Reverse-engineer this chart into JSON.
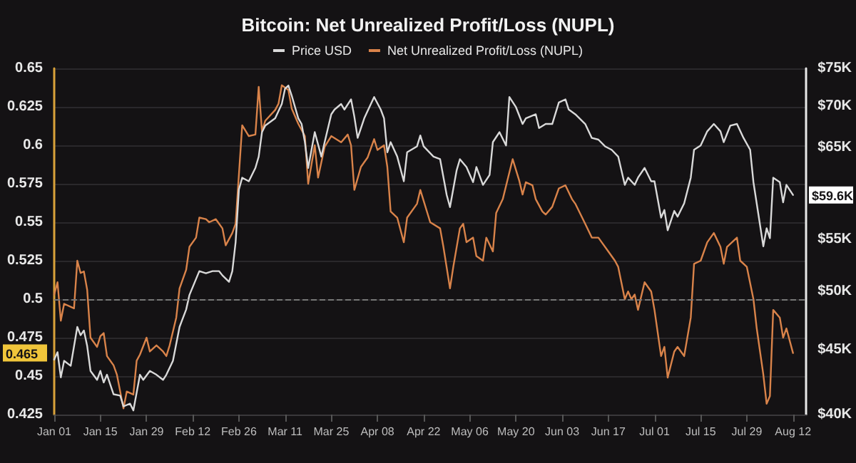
{
  "chart_data": {
    "type": "line",
    "title": "Bitcoin: Net Unrealized Profit/Loss (NUPL)",
    "series": [
      {
        "name": "Price USD",
        "color": "#d9d9d9",
        "axis": "y2",
        "x": [
          "--01-01",
          "--01-02",
          "--01-03",
          "--01-04",
          "--01-06",
          "--01-08",
          "--01-09",
          "--01-10",
          "--01-11",
          "--01-12",
          "--01-14",
          "--01-15",
          "--01-16",
          "--01-17",
          "--01-19",
          "--01-21",
          "--01-22",
          "--01-24",
          "--01-25",
          "--01-27",
          "--01-28",
          "--01-30",
          "--02-01",
          "--02-03",
          "--02-04",
          "--02-06",
          "--02-08",
          "--02-10",
          "--02-11",
          "--02-14",
          "--02-16",
          "--02-18",
          "--02-20",
          "--02-21",
          "--02-23",
          "--02-24",
          "--02-25",
          "--02-26",
          "--02-27",
          "--02-29",
          "--03-02",
          "--03-03",
          "--03-04",
          "--03-05",
          "--03-08",
          "--03-10",
          "--03-11",
          "--03-12",
          "--03-13",
          "--03-15",
          "--03-16",
          "--03-17",
          "--03-18",
          "--03-20",
          "--03-22",
          "--03-23",
          "--03-25",
          "--03-26",
          "--03-28",
          "--03-29",
          "--03-31",
          "--04-01",
          "--04-02",
          "--04-04",
          "--04-05",
          "--04-07",
          "--04-09",
          "--04-10",
          "--04-11",
          "--04-12",
          "--04-14",
          "--04-16",
          "--04-17",
          "--04-20",
          "--04-21",
          "--04-22",
          "--04-25",
          "--04-27",
          "--04-29",
          "--04-30",
          "--05-02",
          "--05-03",
          "--05-05",
          "--05-07",
          "--05-08",
          "--05-10",
          "--05-12",
          "--05-13",
          "--05-15",
          "--05-17",
          "--05-18",
          "--05-20",
          "--05-22",
          "--05-23",
          "--05-26",
          "--05-27",
          "--05-29",
          "--05-31",
          "--06-02",
          "--06-04",
          "--06-05",
          "--06-07",
          "--06-10",
          "--06-12",
          "--06-14",
          "--06-16",
          "--06-18",
          "--06-20",
          "--06-22",
          "--06-23",
          "--06-25",
          "--06-26",
          "--06-28",
          "--06-30",
          "--07-01",
          "--07-03",
          "--07-04",
          "--07-05",
          "--07-07",
          "--07-08",
          "--07-10",
          "--07-12",
          "--07-13",
          "--07-15",
          "--07-17",
          "--07-19",
          "--07-21",
          "--07-22",
          "--07-24",
          "--07-26",
          "--07-28",
          "--07-30",
          "--07-31",
          "--08-03",
          "--08-04",
          "--08-05",
          "--08-06",
          "--08-08",
          "--08-09",
          "--08-10",
          "--08-12"
        ],
        "values": [
          44200,
          44800,
          42800,
          44100,
          43700,
          46900,
          46200,
          46600,
          45300,
          43300,
          42600,
          43300,
          42400,
          43000,
          41500,
          41400,
          40600,
          40800,
          40300,
          43000,
          42600,
          43300,
          43000,
          42600,
          43000,
          44100,
          46900,
          48400,
          49700,
          51900,
          51700,
          51900,
          51900,
          51500,
          50900,
          51900,
          54700,
          60200,
          61500,
          61100,
          62600,
          63900,
          66800,
          67600,
          68500,
          70300,
          72300,
          72700,
          71400,
          68500,
          67800,
          65600,
          62600,
          66800,
          63900,
          65600,
          69000,
          69600,
          70300,
          69600,
          70900,
          68700,
          66100,
          68500,
          69400,
          71200,
          69600,
          68500,
          64400,
          65600,
          63900,
          61100,
          64400,
          65100,
          66400,
          65100,
          63900,
          63600,
          59600,
          58300,
          62300,
          63600,
          62700,
          61000,
          62700,
          60700,
          61800,
          65600,
          66800,
          65200,
          71200,
          69900,
          67800,
          68500,
          69000,
          67300,
          67800,
          67800,
          70500,
          70900,
          69600,
          69000,
          67800,
          66100,
          65900,
          65100,
          64700,
          63900,
          60700,
          61500,
          60700,
          61500,
          62600,
          61100,
          61100,
          57200,
          58000,
          55900,
          57900,
          57300,
          58700,
          61500,
          64700,
          65200,
          66900,
          67800,
          66900,
          65600,
          67600,
          67800,
          66100,
          64700,
          61000,
          54300,
          56100,
          55100,
          61500,
          61000,
          58800,
          60700,
          59600
        ]
      },
      {
        "name": "Net Unrealized Profit/Loss (NUPL)",
        "color": "#d9834a",
        "x": [
          "--01-01",
          "--01-02",
          "--01-03",
          "--01-04",
          "--01-07",
          "--01-08",
          "--01-09",
          "--01-10",
          "--01-11",
          "--01-12",
          "--01-14",
          "--01-15",
          "--01-16",
          "--01-17",
          "--01-19",
          "--01-20",
          "--01-22",
          "--01-23",
          "--01-25",
          "--01-26",
          "--01-27",
          "--01-29",
          "--01-30",
          "--02-01",
          "--02-03",
          "--02-04",
          "--02-05",
          "--02-07",
          "--02-08",
          "--02-10",
          "--02-11",
          "--02-13",
          "--02-14",
          "--02-16",
          "--02-17",
          "--02-19",
          "--02-21",
          "--02-22",
          "--02-24",
          "--02-25",
          "--02-26",
          "--02-27",
          "--02-29",
          "--03-02",
          "--03-03",
          "--03-04",
          "--03-05",
          "--03-08",
          "--03-09",
          "--03-10",
          "--03-12",
          "--03-13",
          "--03-15",
          "--03-17",
          "--03-18",
          "--03-20",
          "--03-21",
          "--03-23",
          "--03-25",
          "--03-28",
          "--03-30",
          "--03-31",
          "--04-01",
          "--04-03",
          "--04-05",
          "--04-07",
          "--04-08",
          "--04-10",
          "--04-11",
          "--04-12",
          "--04-14",
          "--04-16",
          "--04-17",
          "--04-20",
          "--04-21",
          "--04-24",
          "--04-27",
          "--04-28",
          "--04-30",
          "--05-01",
          "--05-03",
          "--05-04",
          "--05-05",
          "--05-07",
          "--05-08",
          "--05-10",
          "--05-11",
          "--05-13",
          "--05-14",
          "--05-16",
          "--05-19",
          "--05-21",
          "--05-22",
          "--05-23",
          "--05-25",
          "--05-26",
          "--05-28",
          "--05-29",
          "--05-31",
          "--06-02",
          "--06-04",
          "--06-06",
          "--06-07",
          "--06-10",
          "--06-12",
          "--06-14",
          "--06-15",
          "--06-17",
          "--06-19",
          "--06-20",
          "--06-22",
          "--06-23",
          "--06-24",
          "--06-25",
          "--06-26",
          "--06-28",
          "--06-30",
          "--07-01",
          "--07-03",
          "--07-04",
          "--07-05",
          "--07-07",
          "--07-08",
          "--07-10",
          "--07-12",
          "--07-13",
          "--07-15",
          "--07-17",
          "--07-19",
          "--07-21",
          "--07-22",
          "--07-23",
          "--07-26",
          "--07-27",
          "--07-29",
          "--07-31",
          "--08-01",
          "--08-03",
          "--08-04",
          "--08-05",
          "--08-06",
          "--08-08",
          "--08-09",
          "--08-10",
          "--08-12"
        ],
        "values": [
          0.503,
          0.511,
          0.486,
          0.497,
          0.494,
          0.525,
          0.517,
          0.518,
          0.506,
          0.475,
          0.469,
          0.476,
          0.478,
          0.463,
          0.457,
          0.451,
          0.429,
          0.44,
          0.438,
          0.46,
          0.464,
          0.475,
          0.466,
          0.47,
          0.466,
          0.463,
          0.47,
          0.488,
          0.507,
          0.519,
          0.534,
          0.54,
          0.553,
          0.552,
          0.55,
          0.552,
          0.546,
          0.535,
          0.543,
          0.549,
          0.581,
          0.613,
          0.606,
          0.607,
          0.638,
          0.609,
          0.616,
          0.623,
          0.627,
          0.639,
          0.636,
          0.624,
          0.614,
          0.606,
          0.575,
          0.6,
          0.579,
          0.599,
          0.606,
          0.602,
          0.607,
          0.6,
          0.571,
          0.586,
          0.592,
          0.604,
          0.597,
          0.6,
          0.586,
          0.557,
          0.553,
          0.537,
          0.553,
          0.562,
          0.571,
          0.55,
          0.546,
          0.534,
          0.507,
          0.521,
          0.546,
          0.549,
          0.537,
          0.54,
          0.528,
          0.525,
          0.54,
          0.531,
          0.556,
          0.565,
          0.591,
          0.577,
          0.568,
          0.576,
          0.574,
          0.565,
          0.557,
          0.555,
          0.56,
          0.572,
          0.574,
          0.565,
          0.562,
          0.549,
          0.54,
          0.54,
          0.537,
          0.531,
          0.525,
          0.521,
          0.5,
          0.505,
          0.5,
          0.503,
          0.493,
          0.511,
          0.505,
          0.493,
          0.463,
          0.469,
          0.449,
          0.466,
          0.469,
          0.463,
          0.488,
          0.523,
          0.525,
          0.537,
          0.543,
          0.534,
          0.523,
          0.534,
          0.54,
          0.525,
          0.521,
          0.5,
          0.481,
          0.451,
          0.432,
          0.437,
          0.493,
          0.488,
          0.475,
          0.481,
          0.465
        ]
      }
    ],
    "xlim": [
      "--01-01",
      "--08-16"
    ],
    "xticks": [
      {
        "value": "--01-01",
        "label": "Jan 01"
      },
      {
        "value": "--01-15",
        "label": "Jan 15"
      },
      {
        "value": "--01-29",
        "label": "Jan 29"
      },
      {
        "value": "--02-12",
        "label": "Feb 12"
      },
      {
        "value": "--02-26",
        "label": "Feb 26"
      },
      {
        "value": "--03-11",
        "label": "Mar 11"
      },
      {
        "value": "--03-25",
        "label": "Mar 25"
      },
      {
        "value": "--04-08",
        "label": "Apr 08"
      },
      {
        "value": "--04-22",
        "label": "Apr 22"
      },
      {
        "value": "--05-06",
        "label": "May 06"
      },
      {
        "value": "--05-20",
        "label": "May 20"
      },
      {
        "value": "--06-03",
        "label": "Jun 03"
      },
      {
        "value": "--06-17",
        "label": "Jun 17"
      },
      {
        "value": "--07-01",
        "label": "Jul 01"
      },
      {
        "value": "--07-15",
        "label": "Jul 15"
      },
      {
        "value": "--07-29",
        "label": "Jul 29"
      },
      {
        "value": "--08-12",
        "label": "Aug 12"
      }
    ],
    "ylim": [
      0.425,
      0.65
    ],
    "yticks": [
      0.425,
      0.45,
      0.475,
      0.5,
      0.525,
      0.55,
      0.575,
      0.6,
      0.625,
      0.65
    ],
    "y2lim": [
      40000,
      75000
    ],
    "y2ticks": [
      {
        "value": 40000,
        "label": "$40K"
      },
      {
        "value": 45000,
        "label": "$45K"
      },
      {
        "value": 50000,
        "label": "$50K"
      },
      {
        "value": 55000,
        "label": "$55K"
      },
      {
        "value": 65000,
        "label": "$65K"
      },
      {
        "value": 70000,
        "label": "$70K"
      },
      {
        "value": 75000,
        "label": "$75K"
      }
    ],
    "log": "y2",
    "ref_lines": [
      {
        "axis": "y",
        "value": 0.5,
        "line_style": "dashed",
        "color": "#777777"
      }
    ],
    "annotations": [
      "0.465",
      "$59.6K"
    ],
    "grid": "y",
    "legend": "top",
    "marker": "none",
    "line_style": "solid"
  }
}
